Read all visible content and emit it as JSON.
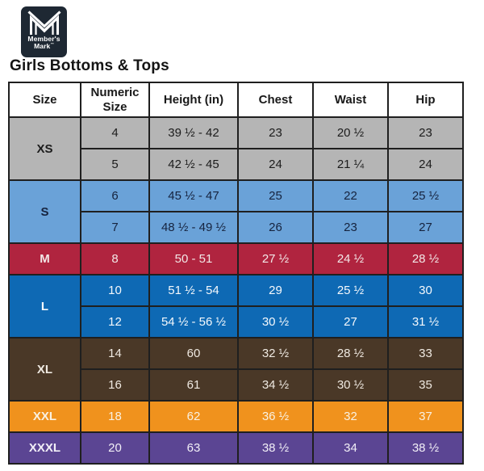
{
  "logo": {
    "line1": "Member's",
    "line2": "Mark",
    "trademark": "™",
    "bg_color": "#1e2833",
    "mark_color": "#ffffff"
  },
  "title": "Girls Bottoms & Tops",
  "colors": {
    "page_background": "#ffffff",
    "table_border": "#1f1f1f",
    "header_background": "#ffffff",
    "header_text": "#191919"
  },
  "table": {
    "headers": [
      "Size",
      "Numeric Size",
      "Height (in)",
      "Chest",
      "Waist",
      "Hip"
    ],
    "groups": [
      {
        "size": "XS",
        "bg": "#b5b5b5",
        "text": "#1c1c1c",
        "rows": [
          {
            "numeric": "4",
            "height": "39 ½ - 42",
            "chest": "23",
            "waist": "20 ½",
            "hip": "23"
          },
          {
            "numeric": "5",
            "height": "42 ½ - 45",
            "chest": "24",
            "waist": "21 ¼",
            "hip": "24"
          }
        ]
      },
      {
        "size": "S",
        "bg": "#6aa2d8",
        "text": "#16233e",
        "rows": [
          {
            "numeric": "6",
            "height": "45 ½ - 47",
            "chest": "25",
            "waist": "22",
            "hip": "25 ½"
          },
          {
            "numeric": "7",
            "height": "48 ½ - 49 ½",
            "chest": "26",
            "waist": "23",
            "hip": "27"
          }
        ]
      },
      {
        "size": "M",
        "bg": "#b0243f",
        "text": "#f2e7e7",
        "rows": [
          {
            "numeric": "8",
            "height": "50 - 51",
            "chest": "27 ½",
            "waist": "24 ½",
            "hip": "28 ½"
          }
        ]
      },
      {
        "size": "L",
        "bg": "#0e69b4",
        "text": "#f4f8fc",
        "rows": [
          {
            "numeric": "10",
            "height": "51 ½ - 54",
            "chest": "29",
            "waist": "25 ½",
            "hip": "30"
          },
          {
            "numeric": "12",
            "height": "54 ½ - 56 ½",
            "chest": "30 ½",
            "waist": "27",
            "hip": "31 ½"
          }
        ]
      },
      {
        "size": "XL",
        "bg": "#4a3827",
        "text": "#efe9e1",
        "rows": [
          {
            "numeric": "14",
            "height": "60",
            "chest": "32 ½",
            "waist": "28 ½",
            "hip": "33"
          },
          {
            "numeric": "16",
            "height": "61",
            "chest": "34 ½",
            "waist": "30 ½",
            "hip": "35"
          }
        ]
      },
      {
        "size": "XXL",
        "bg": "#f0921d",
        "text": "#f9f1e2",
        "rows": [
          {
            "numeric": "18",
            "height": "62",
            "chest": "36 ½",
            "waist": "32",
            "hip": "37"
          }
        ]
      },
      {
        "size": "XXXL",
        "bg": "#5b4593",
        "text": "#f2eff7",
        "rows": [
          {
            "numeric": "20",
            "height": "63",
            "chest": "38 ½",
            "waist": "34",
            "hip": "38 ½"
          }
        ]
      }
    ]
  }
}
